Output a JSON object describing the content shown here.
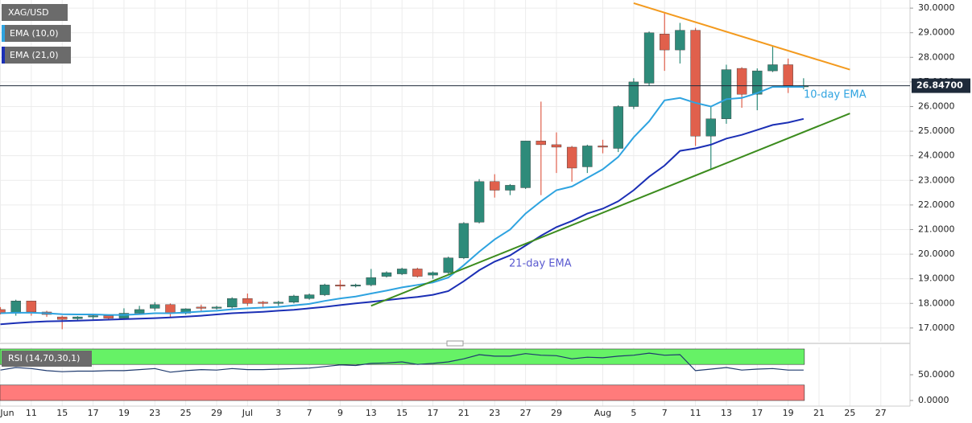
{
  "chart_data": [
    {
      "type": "candlestick",
      "title": "XAG/USD",
      "categories": [
        "Jun",
        null,
        "11",
        null,
        "15",
        null,
        "17",
        null,
        "19",
        null,
        "23",
        null,
        "25",
        null,
        "29",
        null,
        "Jul",
        null,
        "3",
        null,
        "7",
        null,
        "9",
        null,
        "13",
        null,
        "15",
        null,
        "17",
        null,
        "21",
        null,
        "23",
        null,
        "27",
        null,
        "29",
        null,
        null,
        "Aug",
        null,
        "5",
        null,
        "7",
        null,
        "11",
        null,
        "13",
        null,
        "17",
        null,
        "19",
        null,
        "21",
        null,
        "25",
        null,
        "27",
        null
      ],
      "open": [
        17.75,
        17.6,
        18.1,
        17.65,
        17.45,
        17.38,
        17.45,
        17.5,
        17.4,
        17.6,
        17.8,
        17.95,
        17.6,
        17.85,
        17.8,
        17.85,
        18.2,
        18.05,
        18.0,
        18.05,
        18.2,
        18.35,
        18.75,
        18.7,
        18.75,
        19.1,
        19.2,
        19.4,
        19.15,
        19.25,
        19.85,
        21.3,
        22.95,
        22.6,
        22.7,
        24.6,
        24.45,
        24.35,
        23.55,
        24.4,
        24.3,
        26.0,
        26.95,
        28.95,
        28.3,
        29.1,
        24.8,
        25.5,
        27.55,
        26.5,
        27.45,
        27.7,
        26.8,
        null,
        null,
        null,
        null,
        null,
        null
      ],
      "high": [
        17.85,
        18.15,
        18.1,
        17.7,
        17.5,
        17.48,
        17.55,
        17.55,
        17.8,
        17.9,
        18.05,
        18.0,
        17.8,
        17.95,
        17.9,
        18.25,
        18.4,
        18.1,
        18.1,
        18.35,
        18.4,
        18.8,
        18.95,
        18.8,
        19.4,
        19.3,
        19.45,
        19.45,
        19.3,
        19.9,
        21.3,
        23.05,
        23.25,
        22.85,
        24.6,
        26.2,
        24.95,
        24.4,
        24.45,
        24.65,
        26.05,
        27.15,
        29.05,
        29.84,
        29.4,
        29.2,
        26.0,
        27.7,
        27.6,
        27.55,
        28.45,
        27.95,
        27.15,
        null,
        null,
        null,
        null,
        null,
        null
      ],
      "low": [
        17.55,
        17.5,
        17.5,
        17.45,
        16.95,
        17.3,
        17.35,
        17.35,
        17.35,
        17.55,
        17.7,
        17.45,
        17.55,
        17.7,
        17.75,
        17.8,
        17.9,
        17.85,
        17.9,
        18.0,
        18.15,
        18.3,
        18.55,
        18.65,
        18.7,
        19.05,
        19.15,
        19.05,
        19.0,
        19.2,
        19.8,
        21.25,
        22.3,
        22.4,
        22.65,
        22.4,
        23.3,
        22.95,
        23.3,
        24.1,
        24.15,
        25.9,
        26.85,
        27.45,
        27.75,
        24.4,
        23.45,
        25.3,
        25.95,
        25.85,
        27.4,
        26.55,
        26.7,
        null,
        null,
        null,
        null,
        null,
        null
      ],
      "close": [
        17.6,
        18.1,
        17.65,
        17.55,
        17.35,
        17.45,
        17.5,
        17.4,
        17.6,
        17.75,
        17.95,
        17.6,
        17.78,
        17.8,
        17.85,
        18.2,
        18.0,
        18.0,
        18.05,
        18.3,
        18.35,
        18.75,
        18.7,
        18.75,
        19.05,
        19.25,
        19.4,
        19.1,
        19.25,
        19.85,
        21.25,
        22.95,
        22.6,
        22.8,
        24.6,
        24.45,
        24.35,
        23.5,
        24.4,
        24.35,
        26.0,
        27.0,
        29.0,
        28.3,
        29.1,
        24.8,
        25.5,
        27.5,
        26.5,
        27.45,
        27.7,
        26.85,
        26.847,
        null,
        null,
        null,
        null,
        null,
        null
      ],
      "up_color": "#2e8b7a",
      "down_color": "#e0604c",
      "lines": [
        {
          "name": "EMA (10,0)",
          "color": "#2ea3e0",
          "values": [
            17.6,
            17.62,
            17.62,
            17.6,
            17.56,
            17.55,
            17.55,
            17.53,
            17.53,
            17.56,
            17.6,
            17.6,
            17.63,
            17.67,
            17.7,
            17.76,
            17.8,
            17.83,
            17.86,
            17.92,
            17.98,
            18.1,
            18.2,
            18.28,
            18.4,
            18.52,
            18.65,
            18.75,
            18.85,
            19.05,
            19.55,
            20.1,
            20.6,
            21.0,
            21.65,
            22.15,
            22.6,
            22.75,
            23.1,
            23.45,
            23.95,
            24.75,
            25.4,
            26.25,
            26.35,
            26.15,
            26.0,
            26.3,
            26.35,
            26.55,
            26.8,
            26.8,
            26.8,
            null,
            null,
            null,
            null,
            null,
            null
          ]
        },
        {
          "name": "EMA (21,0)",
          "color": "#1b2fb5",
          "values": [
            17.15,
            17.2,
            17.24,
            17.27,
            17.28,
            17.3,
            17.32,
            17.34,
            17.36,
            17.38,
            17.4,
            17.43,
            17.46,
            17.5,
            17.55,
            17.6,
            17.63,
            17.66,
            17.7,
            17.74,
            17.8,
            17.86,
            17.93,
            18.0,
            18.06,
            18.13,
            18.2,
            18.26,
            18.35,
            18.5,
            18.9,
            19.35,
            19.7,
            19.95,
            20.35,
            20.75,
            21.1,
            21.35,
            21.65,
            21.85,
            22.15,
            22.6,
            23.15,
            23.6,
            24.2,
            24.3,
            24.45,
            24.7,
            24.85,
            25.05,
            25.25,
            25.35,
            25.5,
            null,
            null,
            null,
            null,
            null,
            null
          ]
        }
      ],
      "trendlines": [
        {
          "color": "#f39a1e",
          "x": [
            41,
            55
          ],
          "values": [
            30.2,
            27.5
          ]
        },
        {
          "color": "#3c8c1e",
          "x": [
            24,
            55
          ],
          "values": [
            17.9,
            25.72
          ]
        }
      ],
      "annotations": [
        "10-day EMA",
        "21-day EMA"
      ],
      "last_price": {
        "value": 26.847,
        "label": "26.84700"
      },
      "ylim": [
        16.44,
        30.33
      ],
      "yticks": [
        {
          "value": 17,
          "label": "17.0000"
        },
        {
          "value": 18,
          "label": "18.0000"
        },
        {
          "value": 19,
          "label": "19.0000"
        },
        {
          "value": 20,
          "label": "20.0000"
        },
        {
          "value": 21,
          "label": "21.0000"
        },
        {
          "value": 22,
          "label": "22.0000"
        },
        {
          "value": 23,
          "label": "23.0000"
        },
        {
          "value": 24,
          "label": "24.0000"
        },
        {
          "value": 25,
          "label": "25.0000"
        },
        {
          "value": 26,
          "label": "26.0000"
        },
        {
          "value": 27,
          "label": "27.0000"
        },
        {
          "value": 28,
          "label": "28.0000"
        },
        {
          "value": 29,
          "label": "29.0000"
        },
        {
          "value": 30,
          "label": "30.0000"
        }
      ],
      "grid": true
    },
    {
      "type": "line",
      "title": "RSI (14,70,30,1)",
      "series": [
        {
          "color": "#1f3a6e",
          "values": [
            59,
            64,
            62,
            58,
            56,
            57,
            57,
            58,
            58,
            60,
            62,
            55,
            58,
            60,
            59,
            62,
            60,
            60,
            61,
            62,
            63,
            66,
            69,
            68,
            72,
            73,
            75,
            70,
            72,
            75,
            81,
            89,
            86,
            86,
            91,
            88,
            87,
            81,
            84,
            83,
            86,
            88,
            92,
            88,
            89,
            58,
            61,
            64,
            59,
            61,
            62,
            59,
            59,
            null,
            null,
            null,
            null,
            null,
            null
          ]
        }
      ],
      "bands": [
        {
          "range": [
            70,
            100
          ],
          "color": "#66f266"
        },
        {
          "range": [
            0,
            30
          ],
          "color": "#ff7b7b"
        }
      ],
      "ylim": [
        -10.9,
        103.1
      ],
      "yticks": [
        {
          "value": 50,
          "label": "50.0000"
        },
        {
          "value": 0,
          "label": "0.0000"
        }
      ]
    }
  ]
}
